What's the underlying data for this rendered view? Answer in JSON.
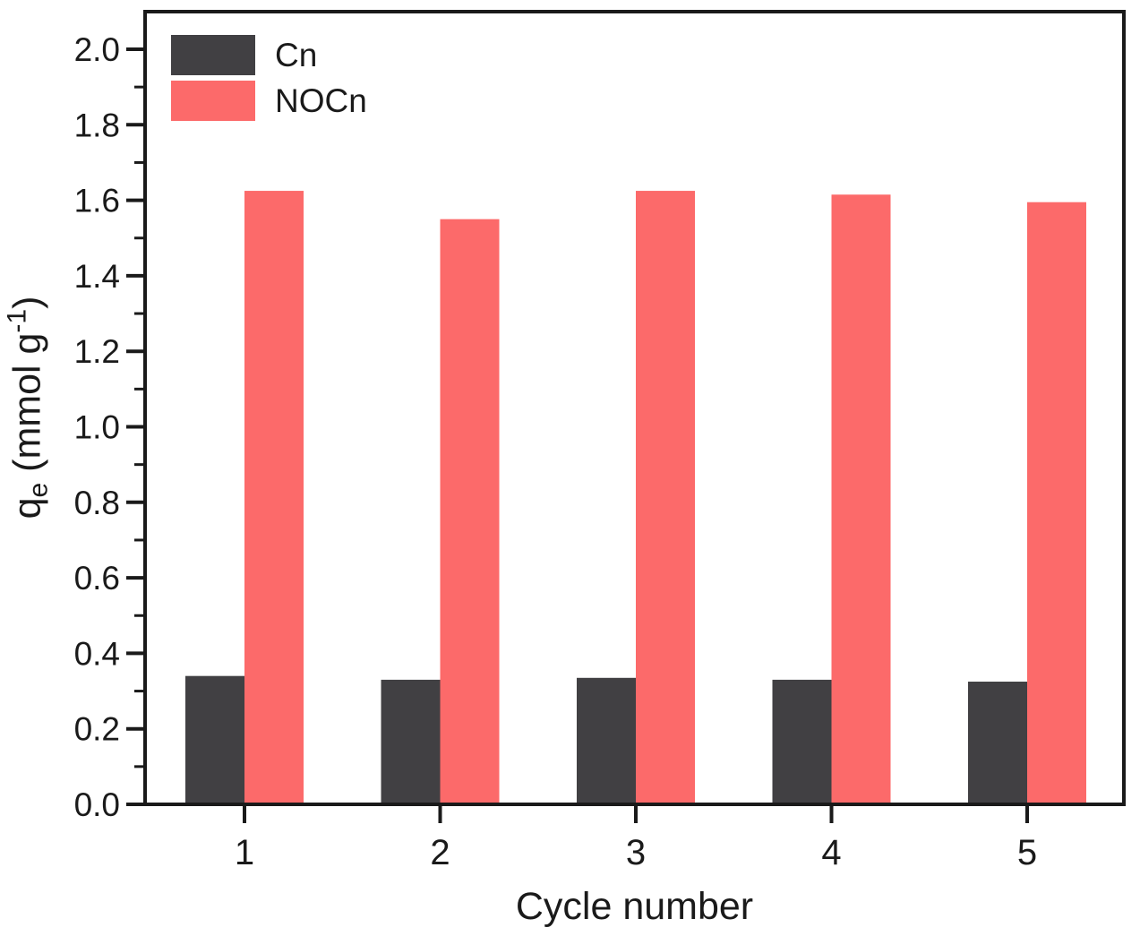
{
  "chart_data": {
    "type": "bar",
    "title": "",
    "xlabel": "Cycle number",
    "ylabel": "qe (mmol g-1)",
    "ylabel_rich": {
      "base": "q",
      "sub": "e",
      "mid": " (mmol g",
      "sup": "-1",
      "end": ")"
    },
    "categories": [
      "1",
      "2",
      "3",
      "4",
      "5"
    ],
    "series": [
      {
        "name": "Cn",
        "color": "#414043",
        "values": [
          0.34,
          0.33,
          0.335,
          0.33,
          0.325
        ]
      },
      {
        "name": "NOCn",
        "color": "#fc6a6a",
        "values": [
          1.625,
          1.55,
          1.625,
          1.615,
          1.595
        ]
      }
    ],
    "ylim": [
      0.0,
      2.0
    ],
    "y_major_step": 0.2,
    "y_minor_step": 0.1,
    "y_tick_labels": [
      "0.0",
      "0.2",
      "0.4",
      "0.6",
      "0.8",
      "1.0",
      "1.2",
      "1.4",
      "1.6",
      "1.8",
      "2.0"
    ],
    "grid": false,
    "legend_position": "top-left",
    "axis_color": "#1a1a1a",
    "background_color": "#ffffff"
  }
}
